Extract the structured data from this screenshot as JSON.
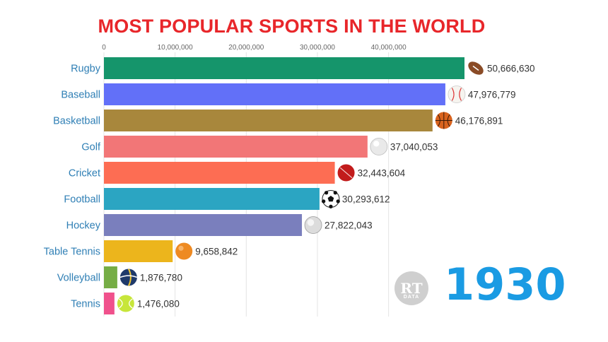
{
  "chart_data": {
    "type": "bar",
    "orientation": "horizontal",
    "title": "MOST POPULAR SPORTS IN THE WORLD",
    "categories": [
      "Rugby",
      "Baseball",
      "Basketball",
      "Golf",
      "Cricket",
      "Football",
      "Hockey",
      "Table Tennis",
      "Volleyball",
      "Tennis"
    ],
    "values": [
      50666630,
      47976779,
      46176891,
      37040053,
      32443604,
      30293612,
      27822043,
      9658842,
      1876780,
      1476080
    ],
    "value_labels": [
      "50,666,630",
      "47,976,779",
      "46,176,891",
      "37,040,053",
      "32,443,604",
      "30,293,612",
      "27,822,043",
      "9,658,842",
      "1,876,780",
      "1,476,080"
    ],
    "colors": [
      "#15956b",
      "#6270f8",
      "#a8873c",
      "#f27677",
      "#fd6d53",
      "#2ba5c2",
      "#7a7fbd",
      "#ecb51c",
      "#76ad45",
      "#f0518c"
    ],
    "icons": [
      "rugby-ball-icon",
      "baseball-icon",
      "basketball-icon",
      "golf-ball-icon",
      "cricket-ball-icon",
      "soccer-ball-icon",
      "hockey-puck-icon",
      "table-tennis-ball-icon",
      "volleyball-icon",
      "tennis-ball-icon"
    ],
    "x_ticks": [
      "0",
      "10,000,000",
      "20,000,000",
      "30,000,000",
      "40,000,000"
    ],
    "x_tick_values": [
      0,
      10000000,
      20000000,
      30000000,
      40000000
    ],
    "xlim": [
      0,
      50666630
    ],
    "grid": true,
    "year": "1930"
  },
  "watermark": {
    "text": "RT",
    "subtext": "DATA"
  },
  "colors": {
    "title": "#e8262a",
    "year": "#1a9be3",
    "category_label": "#2f7fb5"
  }
}
